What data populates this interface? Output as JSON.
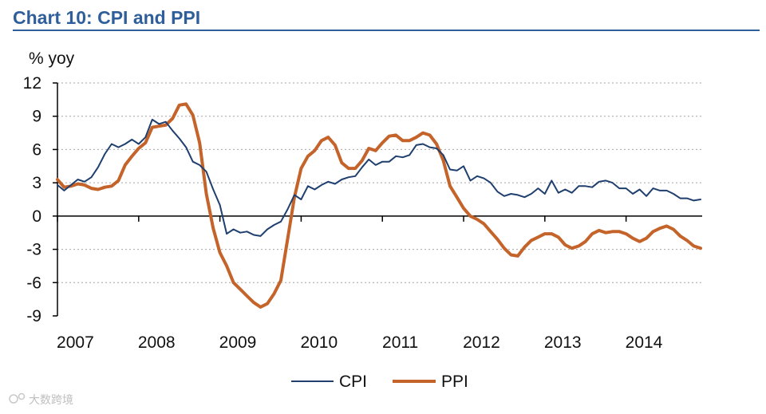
{
  "colors": {
    "title": "#2f5f9a",
    "rule": "#2f5f9a",
    "cpi": "#1f3f6e",
    "ppi": "#c4632a",
    "grid": "#a6a6a6",
    "axis": "#000000"
  },
  "watermark": "大数跨境",
  "chart_data": {
    "type": "line",
    "title": "Chart 10: CPI and PPI",
    "ylabel": "% yoy",
    "xlabel": "",
    "ylim": [
      -9,
      12
    ],
    "yticks": [
      12,
      9,
      6,
      3,
      0,
      -3,
      -6,
      -9
    ],
    "xlim": [
      2007.0,
      2014.917
    ],
    "xticks": [
      2007,
      2008,
      2009,
      2010,
      2011,
      2012,
      2013,
      2014
    ],
    "grid": true,
    "legend_position": "bottom-center",
    "series": [
      {
        "name": "CPI",
        "color_key": "cpi",
        "x": [
          2007.0,
          2007.083,
          2007.167,
          2007.25,
          2007.333,
          2007.417,
          2007.5,
          2007.583,
          2007.667,
          2007.75,
          2007.833,
          2007.917,
          2008.0,
          2008.083,
          2008.167,
          2008.25,
          2008.333,
          2008.417,
          2008.5,
          2008.583,
          2008.667,
          2008.75,
          2008.833,
          2008.917,
          2009.0,
          2009.083,
          2009.167,
          2009.25,
          2009.333,
          2009.417,
          2009.5,
          2009.583,
          2009.667,
          2009.75,
          2009.833,
          2009.917,
          2010.0,
          2010.083,
          2010.167,
          2010.25,
          2010.333,
          2010.417,
          2010.5,
          2010.583,
          2010.667,
          2010.75,
          2010.833,
          2010.917,
          2011.0,
          2011.083,
          2011.167,
          2011.25,
          2011.333,
          2011.417,
          2011.5,
          2011.583,
          2011.667,
          2011.75,
          2011.833,
          2011.917,
          2012.0,
          2012.083,
          2012.167,
          2012.25,
          2012.333,
          2012.417,
          2012.5,
          2012.583,
          2012.667,
          2012.75,
          2012.833,
          2012.917,
          2013.0,
          2013.083,
          2013.167,
          2013.25,
          2013.333,
          2013.417,
          2013.5,
          2013.583,
          2013.667,
          2013.75,
          2013.833,
          2013.917,
          2014.0,
          2014.083,
          2014.167,
          2014.25,
          2014.333,
          2014.417,
          2014.5,
          2014.583,
          2014.667,
          2014.75,
          2014.833,
          2014.917
        ],
        "values": [
          2.8,
          2.3,
          2.8,
          3.3,
          3.1,
          3.5,
          4.4,
          5.6,
          6.5,
          6.2,
          6.5,
          6.9,
          6.5,
          7.1,
          8.7,
          8.3,
          8.5,
          7.7,
          7.0,
          6.2,
          4.9,
          4.6,
          4.0,
          2.4,
          1.0,
          -1.6,
          -1.2,
          -1.5,
          -1.4,
          -1.7,
          -1.8,
          -1.2,
          -0.8,
          -0.5,
          0.6,
          1.9,
          1.5,
          2.7,
          2.4,
          2.8,
          3.1,
          2.9,
          3.3,
          3.5,
          3.6,
          4.4,
          5.1,
          4.6,
          4.9,
          4.9,
          5.4,
          5.3,
          5.5,
          6.4,
          6.5,
          6.2,
          6.1,
          5.5,
          4.2,
          4.1,
          4.5,
          3.2,
          3.6,
          3.4,
          3.0,
          2.2,
          1.8,
          2.0,
          1.9,
          1.7,
          2.0,
          2.5,
          2.0,
          3.2,
          2.1,
          2.4,
          2.1,
          2.7,
          2.7,
          2.6,
          3.1,
          3.2,
          3.0,
          2.5,
          2.5,
          2.0,
          2.4,
          1.8,
          2.5,
          2.3,
          2.3,
          2.0,
          1.6,
          1.6,
          1.4,
          1.5
        ]
      },
      {
        "name": "PPI",
        "color_key": "ppi",
        "x": [
          2007.0,
          2007.083,
          2007.167,
          2007.25,
          2007.333,
          2007.417,
          2007.5,
          2007.583,
          2007.667,
          2007.75,
          2007.833,
          2007.917,
          2008.0,
          2008.083,
          2008.167,
          2008.25,
          2008.333,
          2008.417,
          2008.5,
          2008.583,
          2008.667,
          2008.75,
          2008.833,
          2008.917,
          2009.0,
          2009.083,
          2009.167,
          2009.25,
          2009.333,
          2009.417,
          2009.5,
          2009.583,
          2009.667,
          2009.75,
          2009.833,
          2009.917,
          2010.0,
          2010.083,
          2010.167,
          2010.25,
          2010.333,
          2010.417,
          2010.5,
          2010.583,
          2010.667,
          2010.75,
          2010.833,
          2010.917,
          2011.0,
          2011.083,
          2011.167,
          2011.25,
          2011.333,
          2011.417,
          2011.5,
          2011.583,
          2011.667,
          2011.75,
          2011.833,
          2011.917,
          2012.0,
          2012.083,
          2012.167,
          2012.25,
          2012.333,
          2012.417,
          2012.5,
          2012.583,
          2012.667,
          2012.75,
          2012.833,
          2012.917,
          2013.0,
          2013.083,
          2013.167,
          2013.25,
          2013.333,
          2013.417,
          2013.5,
          2013.583,
          2013.667,
          2013.75,
          2013.833,
          2013.917,
          2014.0,
          2014.083,
          2014.167,
          2014.25,
          2014.333,
          2014.417,
          2014.5,
          2014.583,
          2014.667,
          2014.75,
          2014.833,
          2014.917
        ],
        "values": [
          3.3,
          2.6,
          2.7,
          2.9,
          2.8,
          2.5,
          2.4,
          2.6,
          2.7,
          3.2,
          4.6,
          5.4,
          6.1,
          6.6,
          8.0,
          8.1,
          8.2,
          8.8,
          10.0,
          10.1,
          9.1,
          6.6,
          2.0,
          -1.1,
          -3.3,
          -4.5,
          -6.0,
          -6.6,
          -7.2,
          -7.8,
          -8.2,
          -7.9,
          -7.0,
          -5.8,
          -2.1,
          1.7,
          4.3,
          5.4,
          5.9,
          6.8,
          7.1,
          6.4,
          4.8,
          4.3,
          4.3,
          5.0,
          6.1,
          5.9,
          6.6,
          7.2,
          7.3,
          6.8,
          6.8,
          7.1,
          7.5,
          7.3,
          6.5,
          5.0,
          2.7,
          1.7,
          0.7,
          0.0,
          -0.3,
          -0.7,
          -1.4,
          -2.1,
          -2.9,
          -3.5,
          -3.6,
          -2.8,
          -2.2,
          -1.9,
          -1.6,
          -1.6,
          -1.9,
          -2.6,
          -2.9,
          -2.7,
          -2.3,
          -1.6,
          -1.3,
          -1.5,
          -1.4,
          -1.4,
          -1.6,
          -2.0,
          -2.3,
          -2.0,
          -1.4,
          -1.1,
          -0.9,
          -1.2,
          -1.8,
          -2.2,
          -2.7,
          -2.9
        ]
      }
    ]
  }
}
